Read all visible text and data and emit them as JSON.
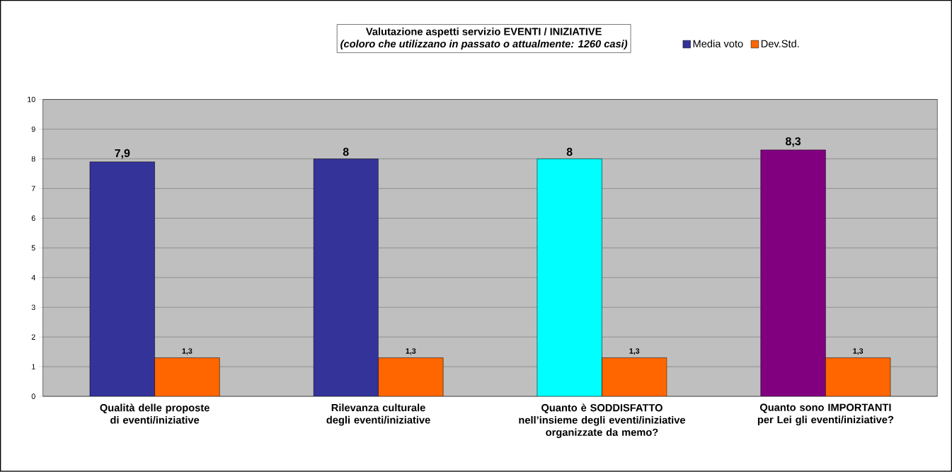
{
  "chart_data": {
    "type": "bar",
    "title": "Valutazione aspetti servizio EVENTI / INIZIATIVE",
    "subtitle": "(coloro che utilizzano in passato o attualmente: 1260 casi)",
    "categories": [
      "Qualità delle proposte di eventi/iniziative",
      "Rilevanza culturale degli eventi/iniziative",
      "Quanto è SODDISFATTO nell’insieme degli eventi/iniziative organizzate da memo?",
      "Quanto sono IMPORTANTI per Lei gli eventi/iniziative?"
    ],
    "series": [
      {
        "name": "Media voto",
        "color": "#333399",
        "colors": [
          "#333399",
          "#333399",
          "#00ffff",
          "#800080"
        ],
        "values": [
          7.9,
          8,
          8,
          8.3
        ],
        "value_labels": [
          "7,9",
          "8",
          "8",
          "8,3"
        ]
      },
      {
        "name": "Dev.Std.",
        "color": "#ff6600",
        "values": [
          1.3,
          1.3,
          1.3,
          1.3
        ],
        "value_labels": [
          "1,3",
          "1,3",
          "1,3",
          "1,3"
        ]
      }
    ],
    "ylim": [
      0,
      10
    ],
    "yticks": [
      0,
      1,
      2,
      3,
      4,
      5,
      6,
      7,
      8,
      9,
      10
    ],
    "grid": "y",
    "legend": "top right"
  }
}
